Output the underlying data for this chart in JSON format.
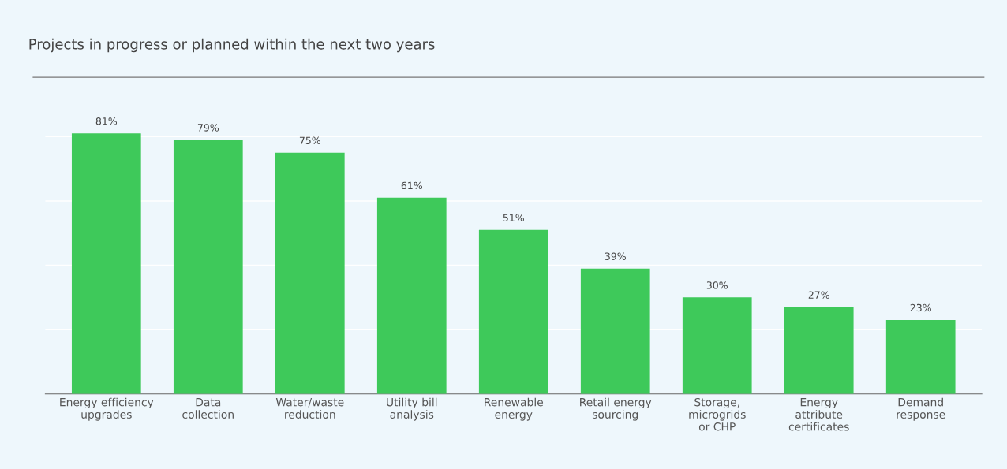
{
  "chart_data": {
    "type": "bar",
    "title": "Projects in progress or planned within the next two years",
    "categories": [
      "Energy efficiency\nupgrades",
      "Data\ncollection",
      "Water/waste\nreduction",
      "Utility bill\nanalysis",
      "Renewable\nenergy",
      "Retail energy\nsourcing",
      "Storage,\nmicrogrids\nor CHP",
      "Energy\nattribute\ncertificates",
      "Demand\nresponse"
    ],
    "values": [
      81,
      79,
      75,
      61,
      51,
      39,
      30,
      27,
      23
    ],
    "value_labels": [
      "81%",
      "79%",
      "75%",
      "61%",
      "51%",
      "39%",
      "30%",
      "27%",
      "23%"
    ],
    "color": "#3ec95a",
    "grid": "y",
    "tick_labels": "x",
    "legend": false
  }
}
